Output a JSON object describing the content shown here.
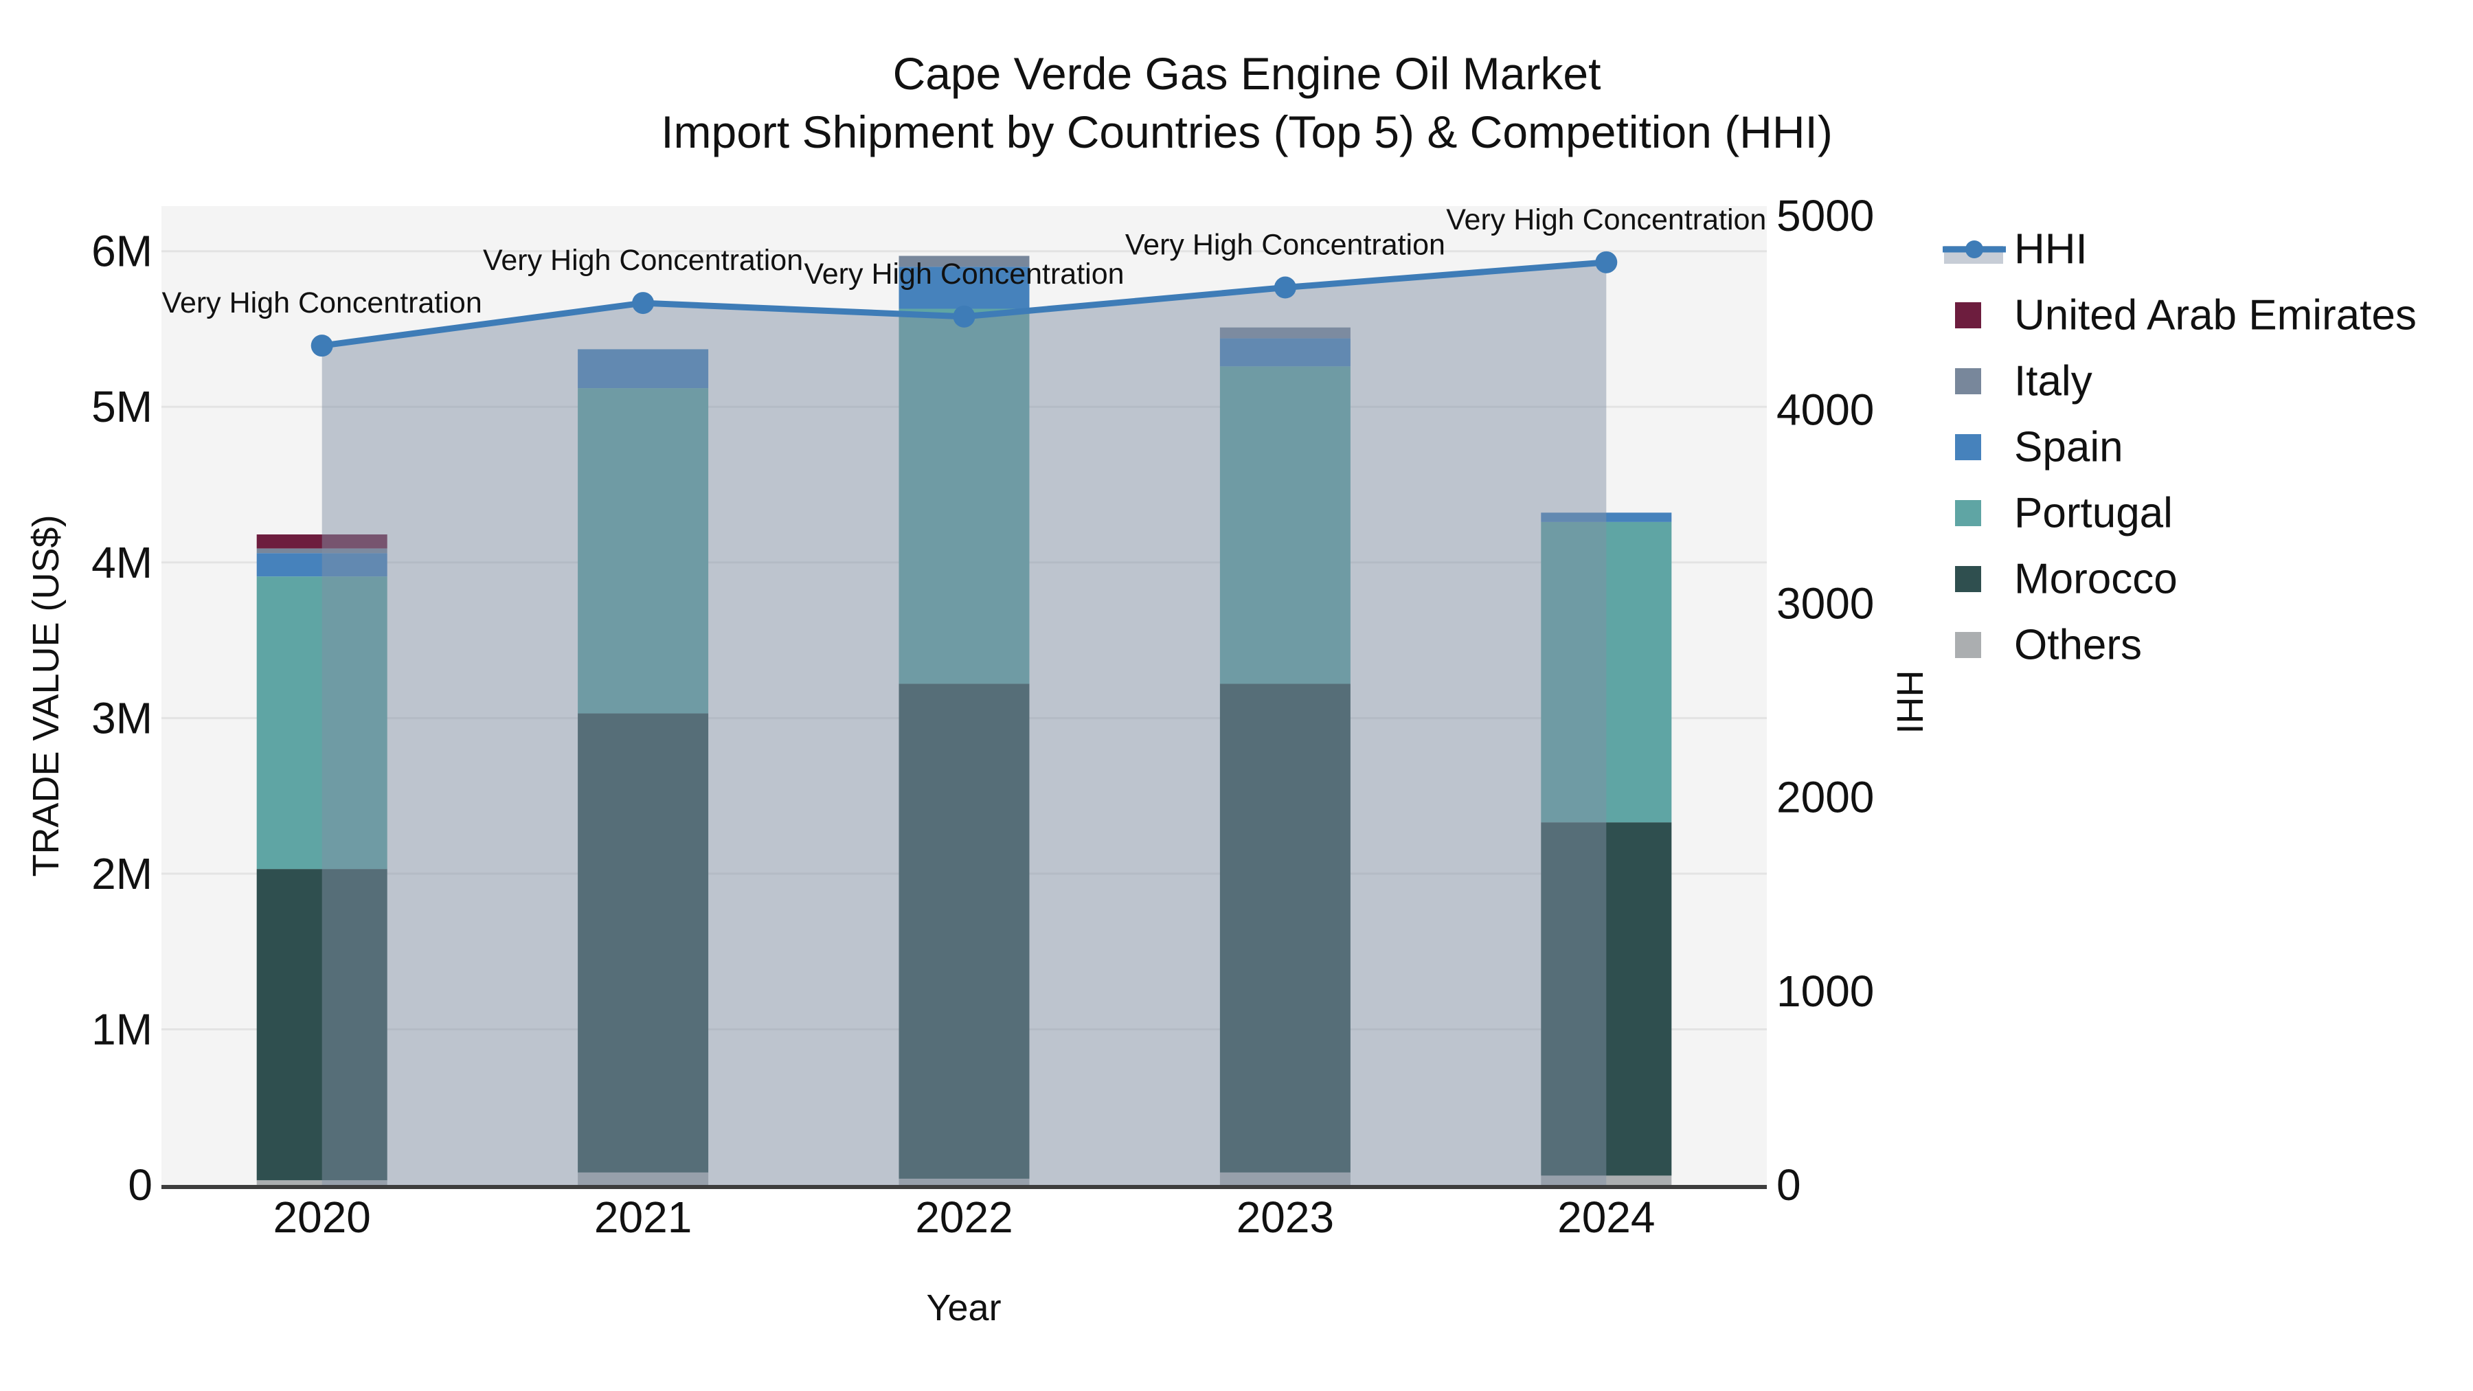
{
  "title_line1": "Cape Verde Gas Engine Oil Market",
  "title_line2": "Import Shipment by Countries (Top 5) & Competition (HHI)",
  "chart_data": {
    "type": "bar",
    "stacked": true,
    "title": "Cape Verde Gas Engine Oil Market",
    "subtitle": "Import Shipment by Countries (Top 5) & Competition (HHI)",
    "xlabel": "Year",
    "ylabel_left": "TRADE VALUE (US$)",
    "ylabel_right": "HHI",
    "categories": [
      "2020",
      "2021",
      "2022",
      "2023",
      "2024"
    ],
    "values_unit": "millions of US$",
    "ylim_left": [
      0,
      6.29
    ],
    "ylim_right": [
      0,
      5050
    ],
    "grid": true,
    "legend_position": "right",
    "yticks_left": [
      {
        "value": 0,
        "label": "0"
      },
      {
        "value": 1,
        "label": "1M"
      },
      {
        "value": 2,
        "label": "2M"
      },
      {
        "value": 3,
        "label": "3M"
      },
      {
        "value": 4,
        "label": "4M"
      },
      {
        "value": 5,
        "label": "5M"
      },
      {
        "value": 6,
        "label": "6M"
      }
    ],
    "yticks_right": [
      {
        "value": 0,
        "label": "0"
      },
      {
        "value": 1000,
        "label": "1000"
      },
      {
        "value": 2000,
        "label": "2000"
      },
      {
        "value": 3000,
        "label": "3000"
      },
      {
        "value": 4000,
        "label": "4000"
      },
      {
        "value": 5000,
        "label": "5000"
      }
    ],
    "series": [
      {
        "name": "United Arab Emirates",
        "color": "#6D1D3E",
        "values": [
          0.09,
          0,
          0,
          0,
          0
        ]
      },
      {
        "name": "Italy",
        "color": "#78879B",
        "values": [
          0.03,
          0,
          0.07,
          0.07,
          0
        ]
      },
      {
        "name": "Spain",
        "color": "#4682BC",
        "values": [
          0.15,
          0.25,
          0.27,
          0.18,
          0.06
        ]
      },
      {
        "name": "Portugal",
        "color": "#5FA5A4",
        "values": [
          1.88,
          2.09,
          2.41,
          2.04,
          1.93
        ]
      },
      {
        "name": "Morocco",
        "color": "#2F4F4F",
        "values": [
          2.0,
          2.95,
          3.18,
          3.14,
          2.27
        ]
      },
      {
        "name": "Others",
        "color": "#ABAEB0",
        "values": [
          0.03,
          0.08,
          0.04,
          0.08,
          0.06
        ]
      }
    ],
    "bar_totals": [
      4.18,
      5.37,
      5.97,
      5.51,
      4.32
    ],
    "line_series": {
      "name": "HHI",
      "axis": "right",
      "color": "#3E7CB7",
      "area_fill": "#8291A5",
      "area_opacity": 0.48,
      "values": [
        4330,
        4550,
        4480,
        4630,
        4760
      ],
      "point_annotations": [
        "Very High Concentration",
        "Very High Concentration",
        "Very High Concentration",
        "Very High Concentration",
        "Very High Concentration"
      ]
    },
    "plot_bg": "#F4F4F4",
    "grid_color": "#E3E3E3",
    "spine_color": "#3D3D3D",
    "text_color": "#111111"
  },
  "legend": {
    "items": [
      "HHI",
      "United Arab Emirates",
      "Italy",
      "Spain",
      "Portugal",
      "Morocco",
      "Others"
    ]
  }
}
